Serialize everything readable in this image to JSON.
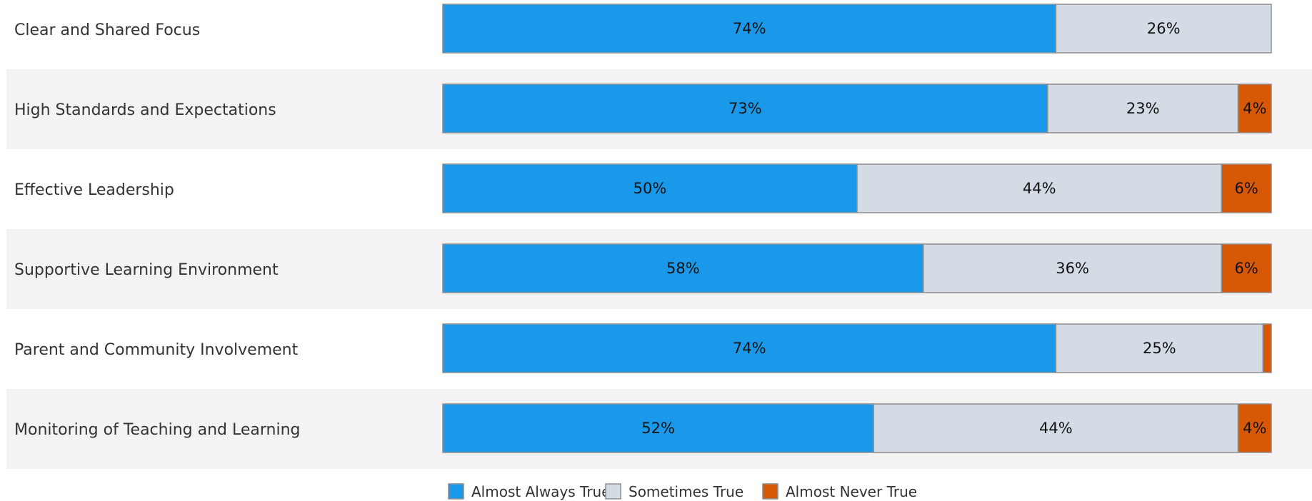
{
  "chart_data": {
    "type": "bar",
    "orientation": "horizontal",
    "stacked": true,
    "normalized_percent": true,
    "categories": [
      "Clear and Shared Focus",
      "High Standards and Expectations",
      "Effective Leadership",
      "Supportive Learning Environment",
      "Parent and Community Involvement",
      "Monitoring of Teaching and Learning"
    ],
    "series": [
      {
        "name": "Almost Always True",
        "color": "#1a98ea",
        "values": [
          74,
          73,
          50,
          58,
          74,
          52
        ],
        "labels": [
          "74%",
          "73%",
          "50%",
          "58%",
          "74%",
          "52%"
        ]
      },
      {
        "name": "Sometimes True",
        "color": "#d3dbe4",
        "values": [
          26,
          23,
          44,
          36,
          25,
          44
        ],
        "labels": [
          "26%",
          "23%",
          "44%",
          "36%",
          "25%",
          "44%"
        ]
      },
      {
        "name": "Almost Never True",
        "color": "#d75806",
        "values": [
          0,
          4,
          6,
          6,
          1,
          4
        ],
        "labels": [
          "",
          "4%",
          "6%",
          "6%",
          "",
          "4%"
        ]
      }
    ],
    "xlim": [
      0,
      100
    ],
    "legend_position": "bottom",
    "row_banding": true,
    "band_color": "#f3f3f3",
    "outline_color": "#8e8e8e",
    "title": "",
    "xlabel": "",
    "ylabel": ""
  }
}
